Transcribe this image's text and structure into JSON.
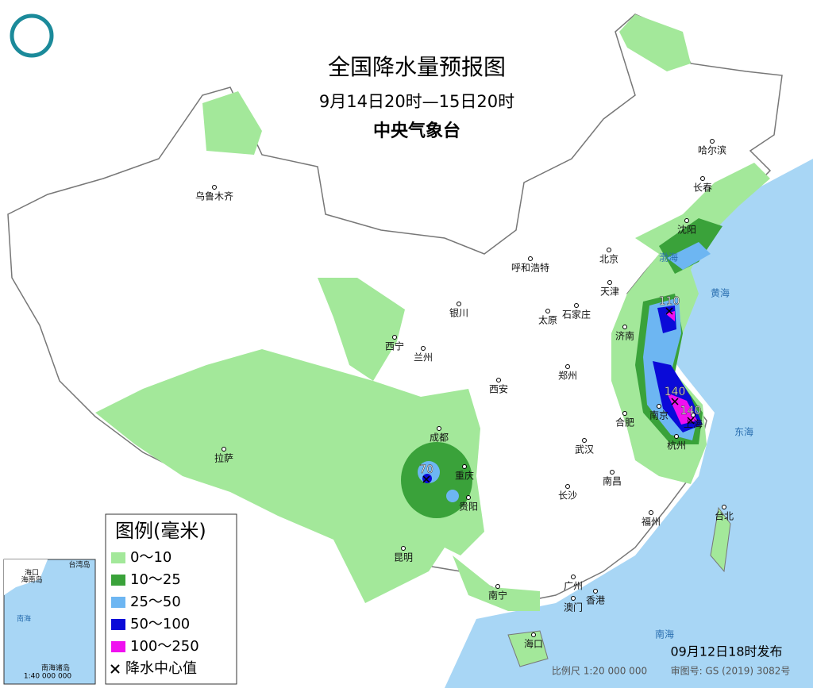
{
  "header": {
    "title": "全国降水量预报图",
    "period": "9月14日20时—15日20时",
    "agency": "中央气象台"
  },
  "legend": {
    "title": "图例(毫米)",
    "items": [
      {
        "label": "0～10",
        "color": "#a3e89a"
      },
      {
        "label": "10～25",
        "color": "#3aa23a"
      },
      {
        "label": "25～50",
        "color": "#6db6f2"
      },
      {
        "label": "50～100",
        "color": "#0a0ad8"
      },
      {
        "label": "100～250",
        "color": "#f010f0"
      }
    ],
    "center_label": "降水中心值"
  },
  "cities": [
    "乌鲁木齐",
    "哈尔滨",
    "长春",
    "沈阳",
    "北京",
    "呼和浩特",
    "天津",
    "银川",
    "石家庄",
    "太原",
    "济南",
    "西宁",
    "兰州",
    "郑州",
    "西安",
    "合肥",
    "南京",
    "上海",
    "成都",
    "武汉",
    "杭州",
    "拉萨",
    "重庆",
    "南昌",
    "长沙",
    "福州",
    "台北",
    "贵阳",
    "昆明",
    "广州",
    "香港",
    "澳门",
    "南宁",
    "海口"
  ],
  "seas": [
    "渤海",
    "黄海",
    "东海",
    "南海"
  ],
  "centers": [
    110,
    140,
    140,
    70
  ],
  "inset": {
    "labels": [
      "海口",
      "海南岛",
      "台湾岛",
      "南海",
      "南海诸岛"
    ],
    "scale": "1:40 000 000"
  },
  "footer": {
    "issued": "09月12日18时发布",
    "scale": "比例尺 1:20 000 000",
    "map_no": "审图号: GS (2019) 3082号"
  }
}
